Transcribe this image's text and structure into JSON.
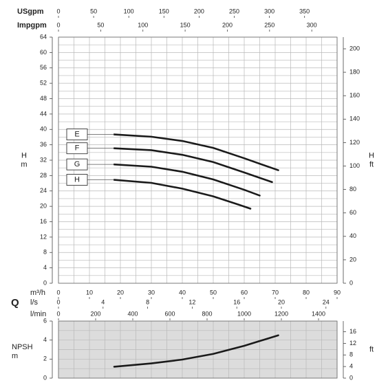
{
  "chart_data": [
    {
      "type": "line",
      "ylabel": [
        "H",
        "m"
      ],
      "y2label": [
        "H",
        "ft"
      ],
      "qlabel": "Q",
      "ylim": [
        0,
        64
      ],
      "yticks": [
        0,
        4,
        8,
        12,
        16,
        20,
        24,
        28,
        32,
        36,
        40,
        44,
        48,
        52,
        56,
        60,
        64
      ],
      "y2lim": [
        0,
        209.97
      ],
      "y2ticks": [
        0,
        20,
        40,
        60,
        80,
        100,
        120,
        140,
        160,
        180,
        200
      ],
      "xlim": [
        0,
        90
      ],
      "x_grid": [
        0,
        5,
        10,
        15,
        20,
        25,
        30,
        35,
        40,
        45,
        50,
        55,
        60,
        65,
        70,
        75,
        80,
        85,
        90
      ],
      "y_grid": [
        0,
        2,
        4,
        6,
        8,
        10,
        12,
        14,
        16,
        18,
        20,
        22,
        24,
        26,
        28,
        30,
        32,
        34,
        36,
        38,
        40,
        42,
        44,
        46,
        48,
        50,
        52,
        54,
        56,
        58,
        60,
        62,
        64
      ],
      "top_axes": [
        {
          "label": "USgpm",
          "xlim": [
            0,
            396.3
          ],
          "xticks": [
            0,
            50,
            100,
            150,
            200,
            250,
            300,
            350
          ]
        },
        {
          "label": "Impgpm",
          "xlim": [
            0,
            330
          ],
          "xticks": [
            0,
            50,
            100,
            150,
            200,
            250,
            300
          ]
        }
      ],
      "bottom_axes": [
        {
          "label": "m³/h",
          "xlim": [
            0,
            90
          ],
          "xticks": [
            0,
            10,
            20,
            30,
            40,
            50,
            60,
            70,
            80,
            90
          ]
        },
        {
          "label": "l/s",
          "xlim": [
            0,
            25
          ],
          "xticks": [
            0,
            4,
            8,
            12,
            16,
            20,
            24
          ]
        },
        {
          "label": "l/min",
          "xlim": [
            0,
            1500
          ],
          "xticks": [
            0,
            200,
            400,
            600,
            800,
            1000,
            1200,
            1400
          ]
        }
      ],
      "series": [
        {
          "name": "E",
          "color": "#1a1a1a",
          "x": [
            18,
            30,
            40,
            50,
            60,
            66,
            71
          ],
          "values": [
            38.7,
            38.1,
            37,
            35.2,
            32.5,
            30.8,
            29.4
          ]
        },
        {
          "name": "F",
          "color": "#1a1a1a",
          "x": [
            18,
            30,
            40,
            50,
            60,
            69
          ],
          "values": [
            35.1,
            34.6,
            33.4,
            31.5,
            28.8,
            26.3
          ]
        },
        {
          "name": "G",
          "color": "#1a1a1a",
          "x": [
            18,
            30,
            40,
            50,
            60,
            65
          ],
          "values": [
            30.9,
            30.3,
            29,
            27,
            24.3,
            22.8
          ]
        },
        {
          "name": "H",
          "color": "#1a1a1a",
          "x": [
            18,
            30,
            40,
            50,
            58,
            62
          ],
          "values": [
            26.9,
            26.1,
            24.6,
            22.6,
            20.5,
            19.4
          ]
        }
      ]
    },
    {
      "type": "line",
      "ylabel": [
        "NPSH",
        "m"
      ],
      "y2label": "ft",
      "ylim": [
        0,
        6
      ],
      "yticks": [
        0,
        2,
        4,
        6
      ],
      "y2lim": [
        0,
        19.685
      ],
      "y2ticks": [
        0,
        4,
        8,
        12,
        16
      ],
      "xlim": [
        0,
        90
      ],
      "x_grid": [
        0,
        5,
        10,
        15,
        20,
        25,
        30,
        35,
        40,
        45,
        50,
        55,
        60,
        65,
        70,
        75,
        80,
        85,
        90
      ],
      "y_grid": [
        0,
        1,
        2,
        3,
        4,
        5,
        6
      ],
      "background": "#dcdcdc",
      "series": [
        {
          "color": "#1a1a1a",
          "x": [
            18,
            30,
            40,
            50,
            60,
            71
          ],
          "values": [
            1.2,
            1.55,
            1.95,
            2.55,
            3.4,
            4.5
          ]
        }
      ]
    }
  ]
}
